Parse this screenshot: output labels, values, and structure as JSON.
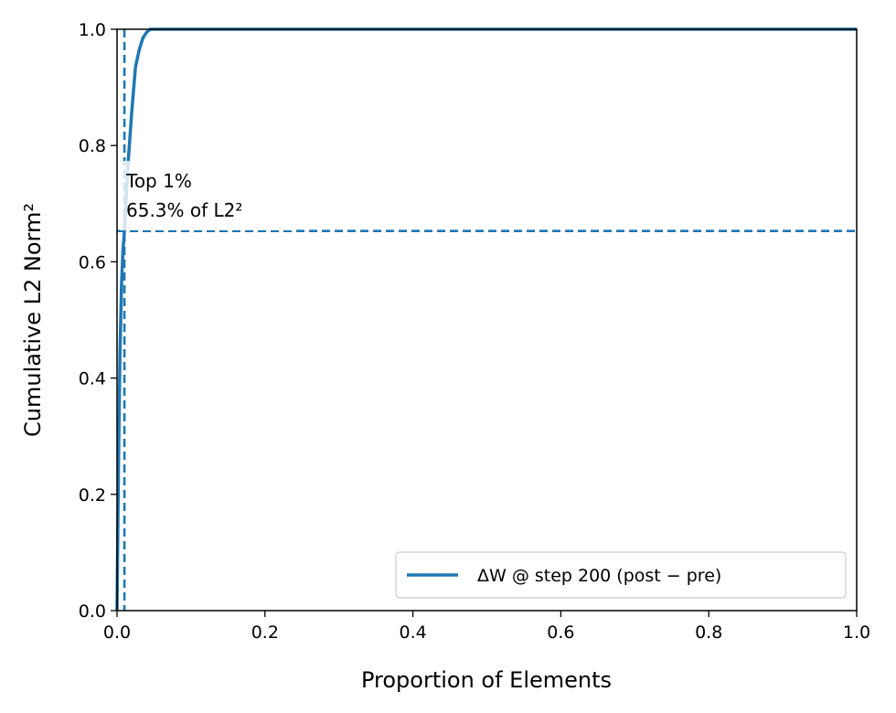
{
  "chart_data": {
    "type": "line",
    "xlabel": "Proportion of Elements",
    "ylabel": "Cumulative L2 Norm²",
    "xlim": [
      0,
      1
    ],
    "ylim": [
      0,
      1
    ],
    "x_ticks": [
      0.0,
      0.2,
      0.4,
      0.6,
      0.8,
      1.0
    ],
    "y_ticks": [
      0.0,
      0.2,
      0.4,
      0.6,
      0.8,
      1.0
    ],
    "x_tick_labels": [
      "0.0",
      "0.2",
      "0.4",
      "0.6",
      "0.8",
      "1.0"
    ],
    "y_tick_labels": [
      "0.0",
      "0.2",
      "0.4",
      "0.6",
      "0.8",
      "1.0"
    ],
    "grid": false,
    "legend_position": "lower right",
    "series": [
      {
        "name": "ΔW @ step 200 (post − pre)",
        "color": "#1f77b4",
        "x": [
          0.0,
          0.002,
          0.004,
          0.006,
          0.008,
          0.01,
          0.015,
          0.02,
          0.025,
          0.03,
          0.035,
          0.04,
          0.045,
          0.05,
          0.1,
          0.2,
          0.4,
          0.6,
          0.8,
          1.0
        ],
        "y": [
          0.0,
          0.25,
          0.44,
          0.56,
          0.62,
          0.653,
          0.77,
          0.86,
          0.935,
          0.965,
          0.985,
          0.995,
          1.0,
          1.0,
          1.0,
          1.0,
          1.0,
          1.0,
          1.0,
          1.0
        ]
      }
    ],
    "reference_lines": [
      {
        "orientation": "vertical",
        "value": 0.01,
        "style": "dashed",
        "color": "#1f77b4"
      },
      {
        "orientation": "horizontal",
        "value": 0.653,
        "style": "dashed",
        "color": "#1f77b4"
      }
    ],
    "annotation": {
      "line1": "Top 1%",
      "line2": "65.3% of L2²",
      "x": 0.01,
      "y": 0.653
    }
  }
}
